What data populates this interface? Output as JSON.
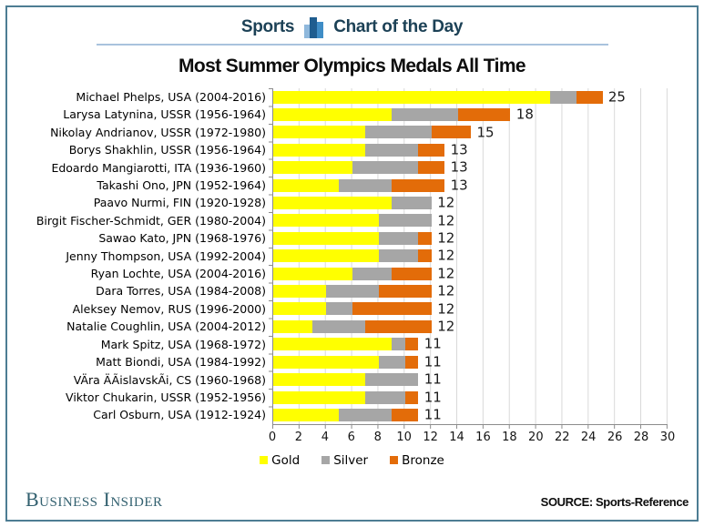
{
  "header": {
    "brand": "Sports",
    "series_title": "Chart of the Day"
  },
  "title": "Most Summer Olympics Medals All Time",
  "chart_data": {
    "type": "bar",
    "orientation": "horizontal",
    "stacked": true,
    "title": "Most Summer Olympics Medals All Time",
    "xlabel": "",
    "ylabel": "",
    "xlim": [
      0,
      30
    ],
    "xticks": [
      0,
      2,
      4,
      6,
      8,
      10,
      12,
      14,
      16,
      18,
      20,
      22,
      24,
      26,
      28,
      30
    ],
    "grid": true,
    "legend_position": "bottom",
    "categories": [
      "Michael Phelps, USA (2004-2016)",
      "Larysa Latynina, USSR (1956-1964)",
      "Nikolay Andrianov, USSR (1972-1980)",
      "Borys Shakhlin, USSR (1956-1964)",
      "Edoardo Mangiarotti, ITA (1936-1960)",
      "Takashi Ono, JPN (1952-1964)",
      "Paavo Nurmi, FIN (1920-1928)",
      "Birgit Fischer-Schmidt, GER (1980-2004)",
      "Sawao Kato, JPN (1968-1976)",
      "Jenny Thompson, USA (1992-2004)",
      "Ryan Lochte, USA (2004-2016)",
      "Dara Torres, USA (1984-2008)",
      "Aleksey Nemov, RUS (1996-2000)",
      "Natalie Coughlin, USA (2004-2012)",
      "Mark Spitz, USA (1968-1972)",
      "Matt Biondi, USA (1984-1992)",
      "VÄra ÄÃislavskÃi, CS (1960-1968)",
      "Viktor Chukarin, USSR (1952-1956)",
      "Carl Osburn, USA (1912-1924)"
    ],
    "series": [
      {
        "name": "Gold",
        "color": "#ffff00",
        "values": [
          21,
          9,
          7,
          7,
          6,
          5,
          9,
          8,
          8,
          8,
          6,
          4,
          4,
          3,
          9,
          8,
          7,
          7,
          5
        ]
      },
      {
        "name": "Silver",
        "color": "#a6a6a6",
        "values": [
          2,
          5,
          5,
          4,
          5,
          4,
          3,
          4,
          3,
          3,
          3,
          4,
          2,
          4,
          1,
          2,
          4,
          3,
          4
        ]
      },
      {
        "name": "Bronze",
        "color": "#e36c09",
        "values": [
          2,
          4,
          3,
          2,
          2,
          4,
          0,
          0,
          1,
          1,
          3,
          4,
          6,
          5,
          1,
          1,
          0,
          1,
          2
        ]
      }
    ],
    "totals": [
      25,
      18,
      15,
      13,
      13,
      13,
      12,
      12,
      12,
      12,
      12,
      12,
      12,
      12,
      11,
      11,
      11,
      11,
      11
    ]
  },
  "footer": {
    "brand": "Business Insider",
    "source": "SOURCE: Sports-Reference"
  }
}
